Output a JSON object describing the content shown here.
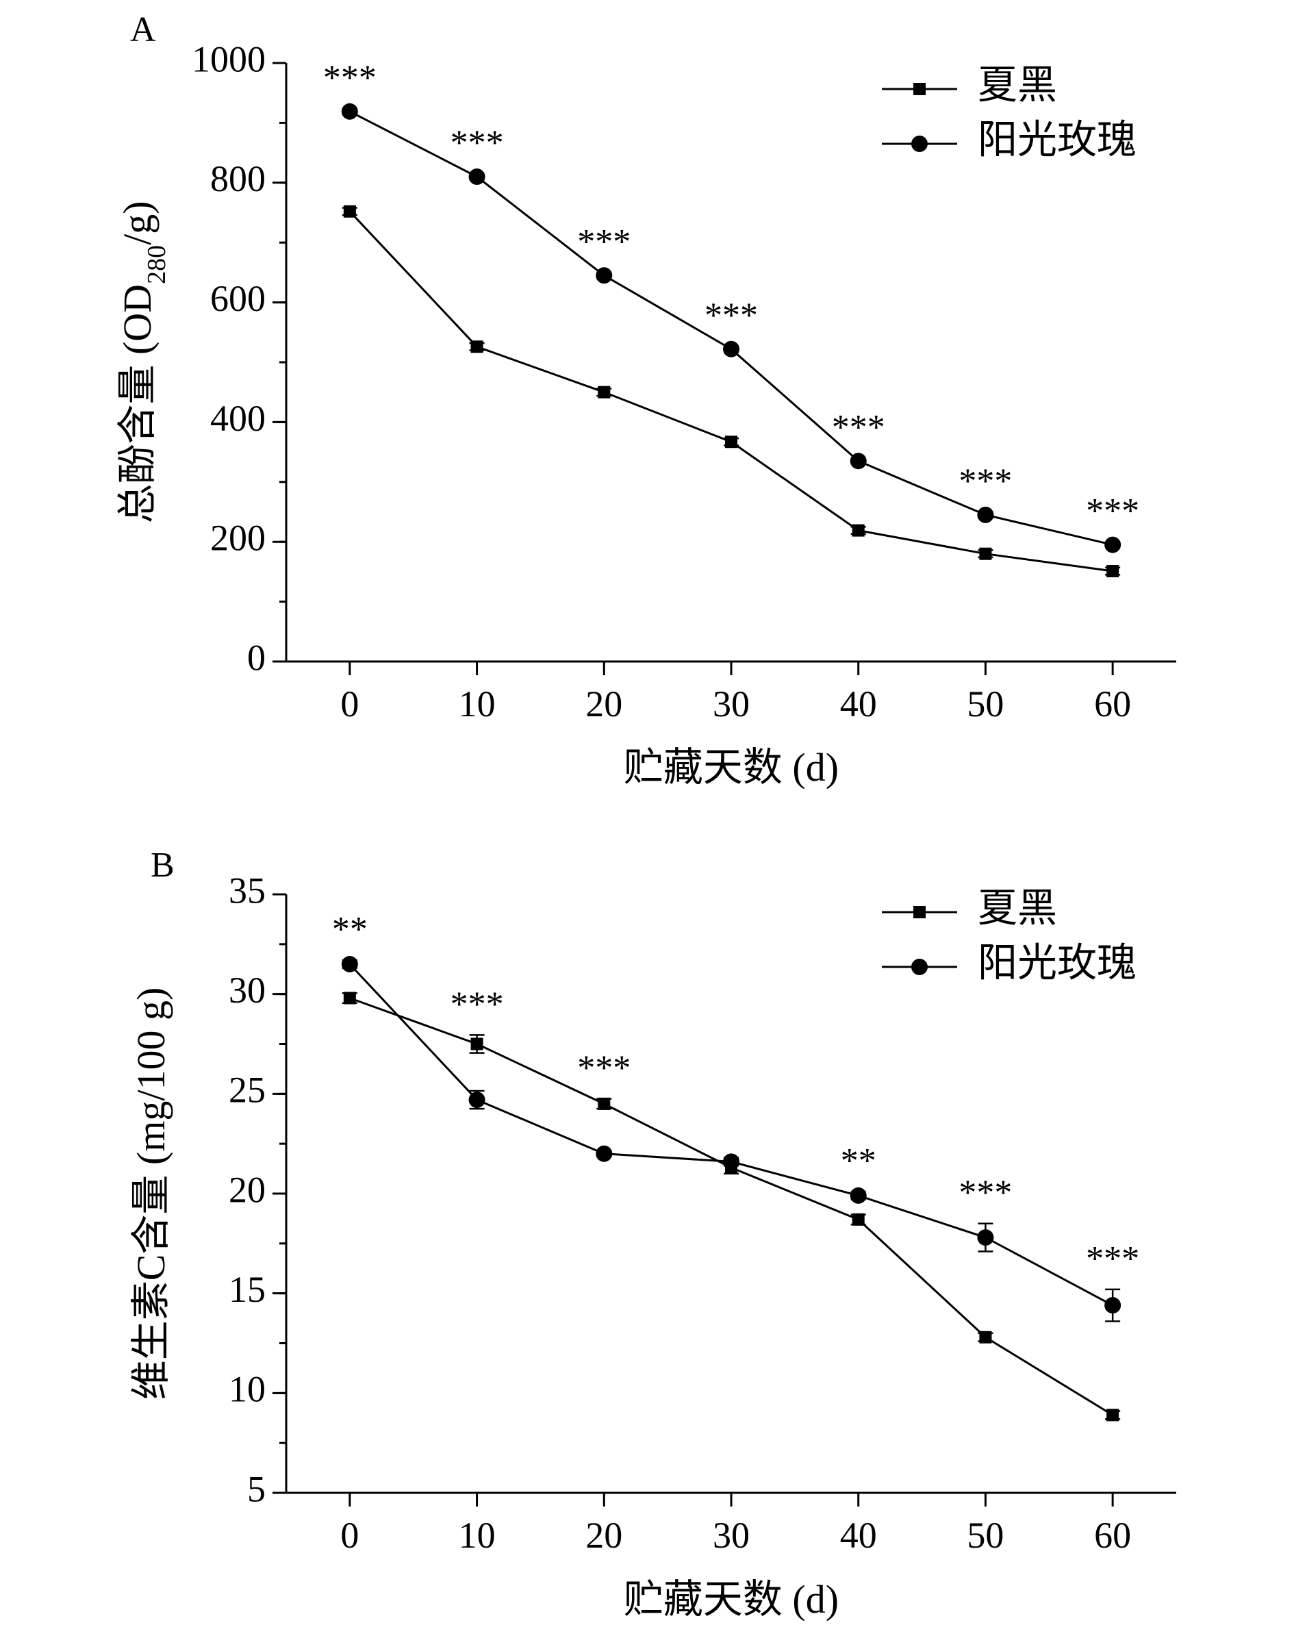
{
  "chart_data": [
    {
      "panel_label": "A",
      "type": "line",
      "xlabel": "贮藏天数 (d)",
      "ylabel_main": "总酚含量 (OD",
      "ylabel_sub": "280",
      "ylabel_end": "/g)",
      "x": [
        0,
        10,
        20,
        30,
        40,
        50,
        60
      ],
      "x_tick_labels": [
        "0",
        "10",
        "20",
        "30",
        "40",
        "50",
        "60"
      ],
      "xlim": [
        -5,
        65
      ],
      "ylim": [
        0,
        1000
      ],
      "y_ticks": [
        0,
        200,
        400,
        600,
        800,
        1000
      ],
      "y_tick_labels": [
        "0",
        "200",
        "400",
        "600",
        "800",
        "1000"
      ],
      "y_minor_step": 100,
      "legend_position": "top-right",
      "series": [
        {
          "name": "夏黑",
          "marker": "square",
          "values": [
            752,
            526,
            450,
            367,
            219,
            180,
            151
          ],
          "errors": [
            6,
            6,
            6,
            6,
            6,
            6,
            6
          ]
        },
        {
          "name": "阳光玫瑰",
          "marker": "circle",
          "values": [
            919,
            810,
            645,
            522,
            335,
            245,
            195
          ],
          "errors": [
            5,
            5,
            5,
            5,
            5,
            5,
            5
          ]
        }
      ],
      "significance": [
        "***",
        "***",
        "***",
        "***",
        "***",
        "***",
        "***"
      ]
    },
    {
      "panel_label": "B",
      "type": "line",
      "xlabel": "贮藏天数 (d)",
      "ylabel_main": "维生素C含量 (mg/100 g)",
      "ylabel_sub": "",
      "ylabel_end": "",
      "x": [
        0,
        10,
        20,
        30,
        40,
        50,
        60
      ],
      "x_tick_labels": [
        "0",
        "10",
        "20",
        "30",
        "40",
        "50",
        "60"
      ],
      "xlim": [
        -5,
        65
      ],
      "ylim": [
        5,
        35
      ],
      "y_ticks": [
        5,
        10,
        15,
        20,
        25,
        30,
        35
      ],
      "y_tick_labels": [
        "5",
        "10",
        "15",
        "20",
        "25",
        "30",
        "35"
      ],
      "y_minor_step": 2.5,
      "legend_position": "top-right",
      "series": [
        {
          "name": "夏黑",
          "marker": "square",
          "values": [
            29.8,
            27.5,
            24.5,
            21.3,
            18.7,
            12.8,
            8.9
          ],
          "errors": [
            0.25,
            0.45,
            0.25,
            0.3,
            0.25,
            0.2,
            0.2
          ]
        },
        {
          "name": "阳光玫瑰",
          "marker": "circle",
          "values": [
            31.5,
            24.7,
            22.0,
            21.6,
            19.9,
            17.8,
            14.4
          ],
          "errors": [
            0.2,
            0.45,
            0.15,
            0.2,
            0.2,
            0.7,
            0.8
          ]
        }
      ],
      "significance": [
        "**",
        "***",
        "***",
        "",
        "**",
        "***",
        "***"
      ]
    }
  ]
}
